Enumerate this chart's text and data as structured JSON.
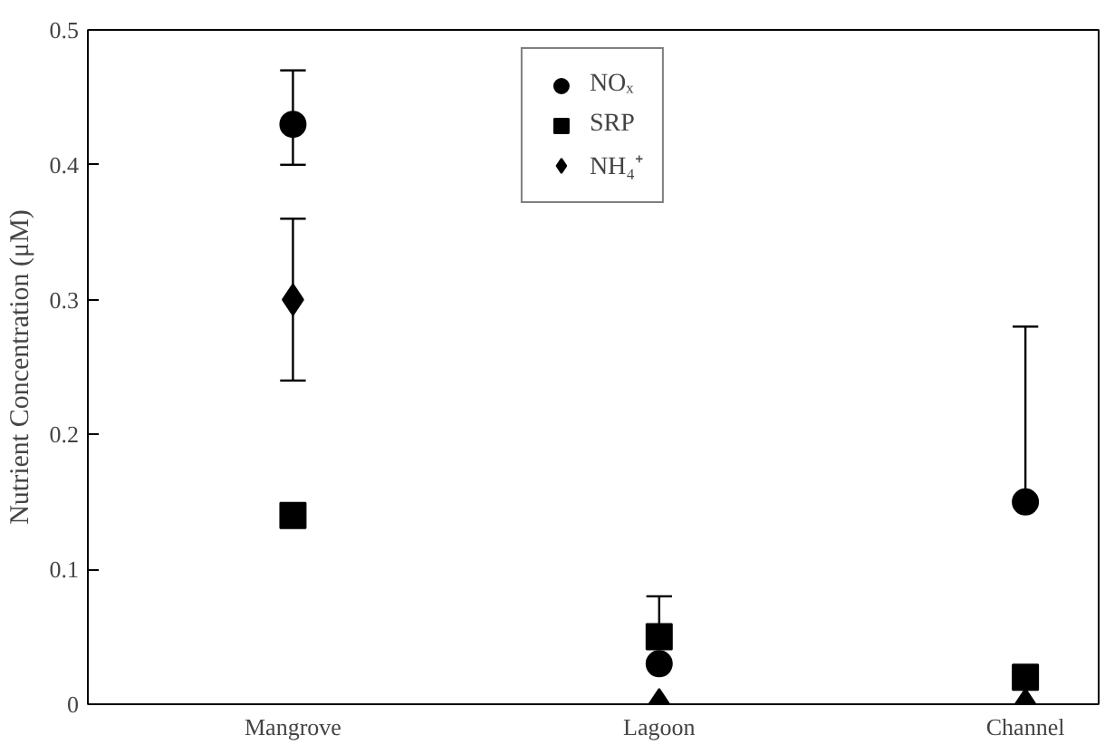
{
  "chart_data": {
    "type": "scatter",
    "ylabel": "Nutrient Concentration (μM)",
    "categories": [
      "Mangrove",
      "Lagoon",
      "Channel"
    ],
    "series": [
      {
        "name": "NOₓ",
        "color": "#000000",
        "marker": "circle",
        "values": [
          0.43,
          0.03,
          0.15
        ],
        "errors": [
          [
            0.4,
            0.47
          ],
          null,
          [
            0.15,
            0.28
          ]
        ]
      },
      {
        "name": "SRP",
        "color": "#000000",
        "marker": "square",
        "values": [
          0.14,
          0.05,
          0.02
        ],
        "errors": [
          null,
          [
            0.05,
            0.08
          ],
          null
        ]
      },
      {
        "name": "NH₄⁺",
        "color": "#000000",
        "marker": "diamond",
        "values": [
          0.3,
          0,
          0
        ],
        "errors": [
          [
            0.24,
            0.36
          ],
          null,
          null
        ]
      }
    ],
    "ylim": [
      0,
      0.5
    ],
    "yticks": [
      0,
      0.1,
      0.2,
      0.3,
      0.4,
      0.5
    ],
    "grid": false,
    "legend": "top"
  }
}
